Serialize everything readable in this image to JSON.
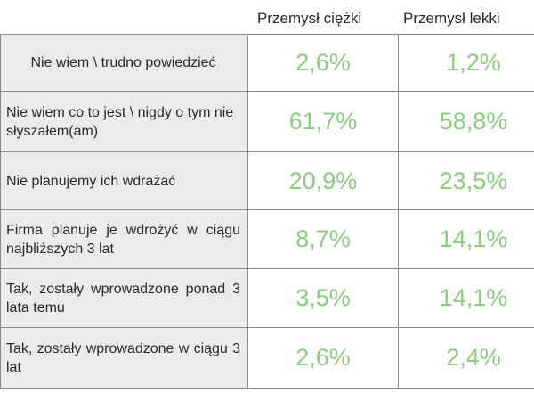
{
  "chart_data": {
    "type": "table",
    "columns": [
      "Przemysł ciężki",
      "Przemysł lekki"
    ],
    "rows": [
      {
        "label": "Nie wiem \\ trudno powiedzieć",
        "values": [
          "2,6%",
          "1,2%"
        ]
      },
      {
        "label": "Nie wiem co to jest \\ nigdy o tym nie słyszałem(am)",
        "values": [
          "61,7%",
          "58,8%"
        ]
      },
      {
        "label": "Nie planujemy ich wdrażać",
        "values": [
          "20,9%",
          "23,5%"
        ]
      },
      {
        "label": "Firma planuje je wdrożyć w ciągu najbliższych 3 lat",
        "values": [
          "8,7%",
          "14,1%"
        ]
      },
      {
        "label": "Tak, zostały wprowadzone ponad 3 lata temu",
        "values": [
          "3,5%",
          "14,1%"
        ]
      },
      {
        "label": "Tak, zostały wprowadzone w ciągu 3 lat",
        "values": [
          "2,6%",
          "2,4%"
        ]
      }
    ],
    "colors": {
      "value_text": "#8ccc80",
      "label_background": "#ebebeb",
      "border": "#8a8a8a"
    }
  }
}
